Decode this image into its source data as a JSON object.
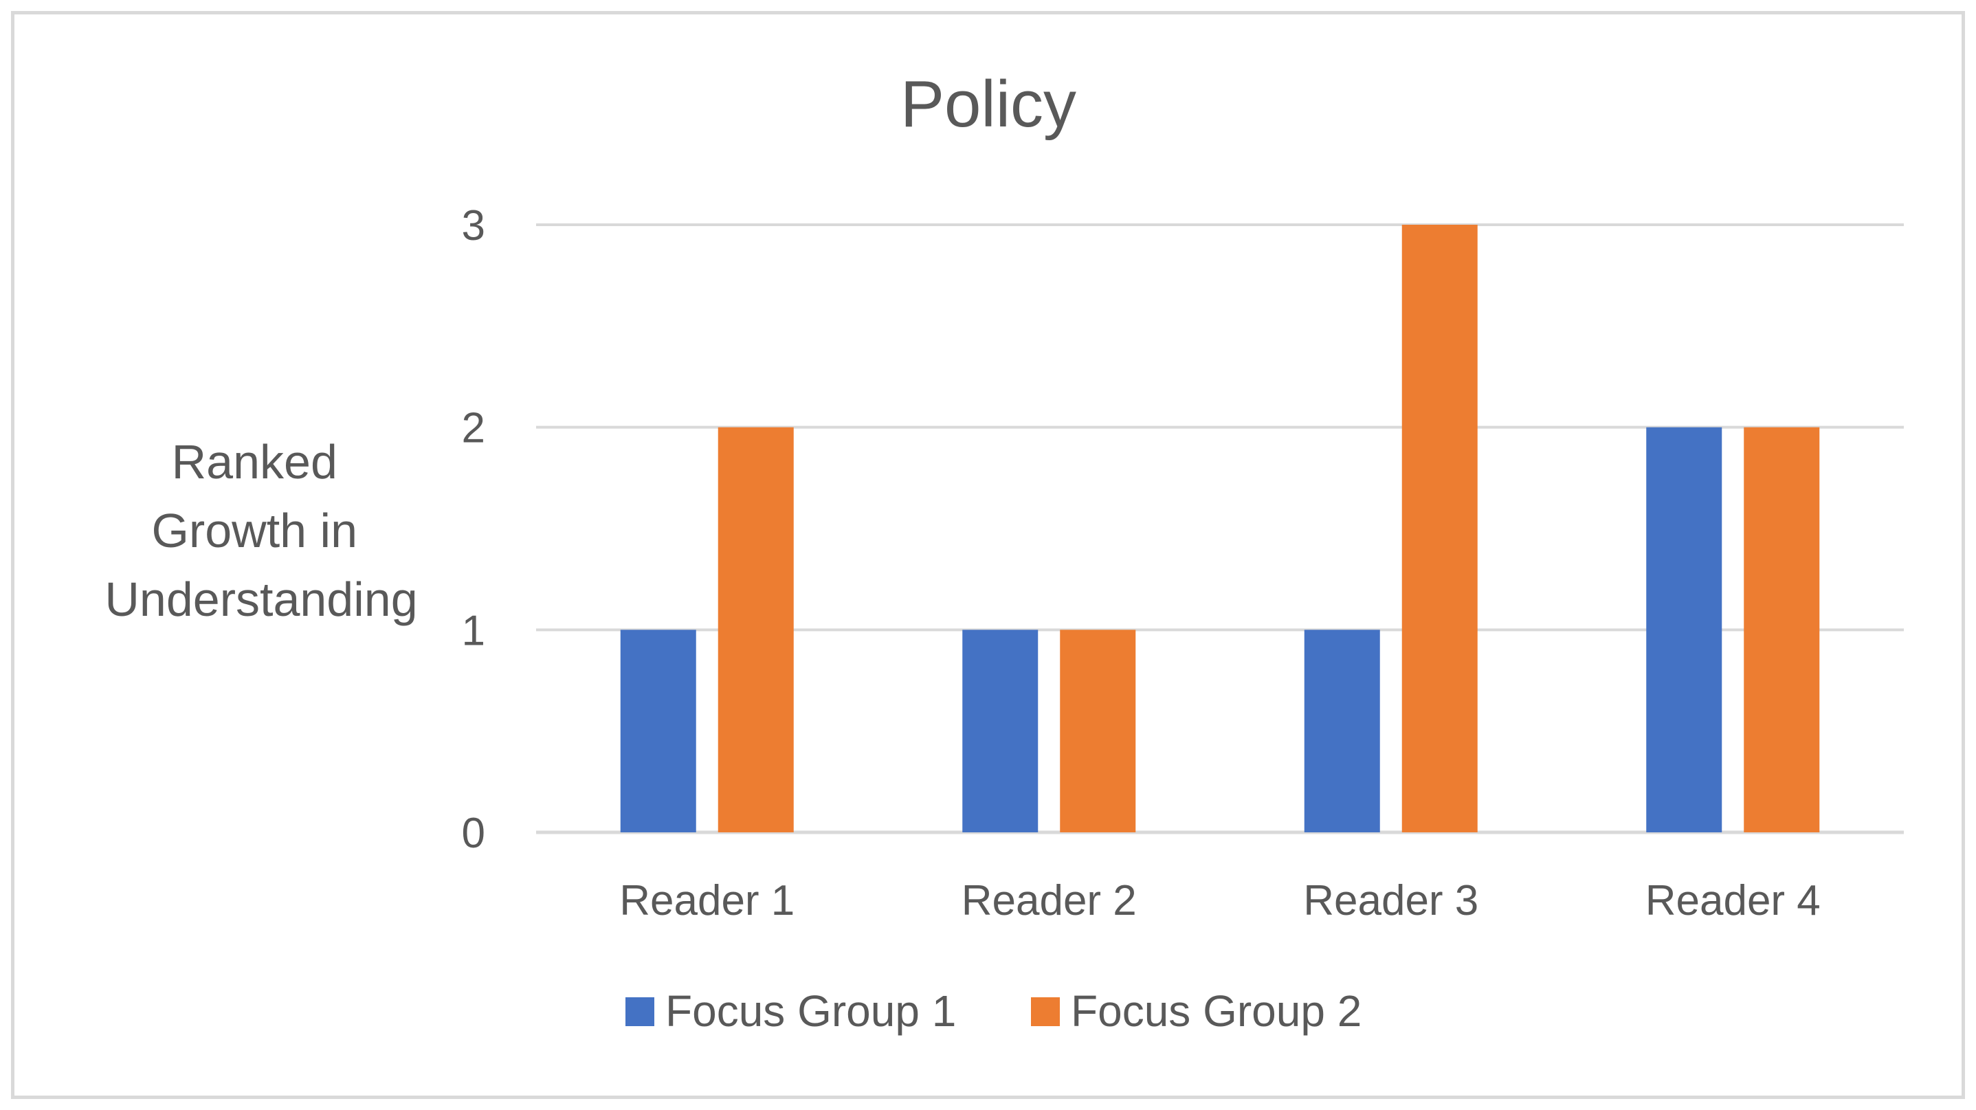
{
  "chart_data": {
    "type": "bar",
    "title": "Policy",
    "ylabel_lines": [
      "Ranked",
      "Growth in",
      "Understanding"
    ],
    "xlabel": "",
    "categories": [
      "Reader 1",
      "Reader 2",
      "Reader 3",
      "Reader 4"
    ],
    "series": [
      {
        "name": "Focus Group 1",
        "values": [
          1,
          1,
          1,
          2
        ],
        "color": "#4472c4"
      },
      {
        "name": "Focus Group 2",
        "values": [
          2,
          1,
          3,
          2
        ],
        "color": "#ed7d31"
      }
    ],
    "ylim": [
      0,
      3
    ],
    "yticks": [
      0,
      1,
      2,
      3
    ],
    "grid": true,
    "gridline_color": "#d9d9d9",
    "legend_position": "bottom"
  }
}
